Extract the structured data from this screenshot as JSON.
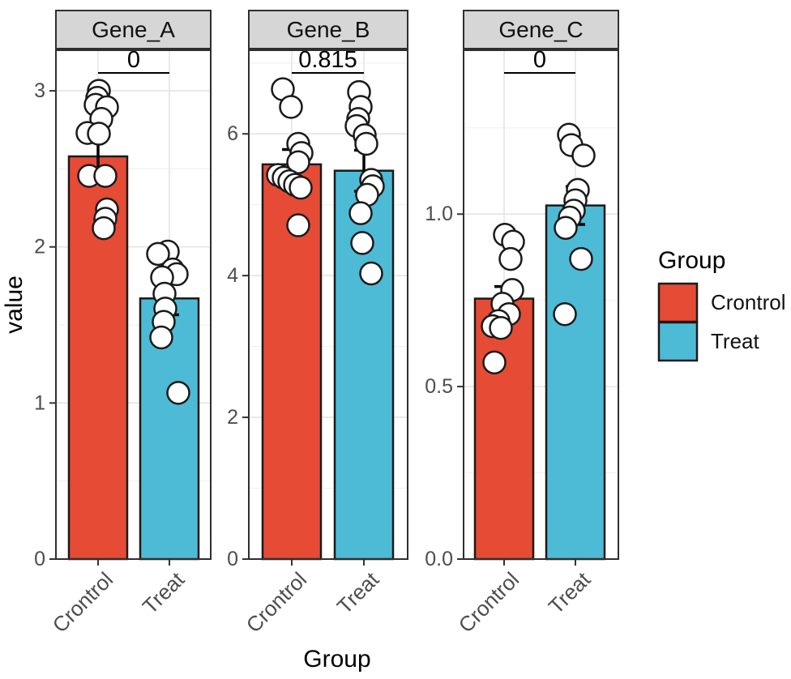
{
  "chart_data": {
    "type": "bar",
    "title": "",
    "xlabel": "Group",
    "ylabel": "value",
    "categories": [
      "Crontrol",
      "Treat"
    ],
    "legend": {
      "title": "Group",
      "position": "right",
      "items": [
        {
          "label": "Crontrol",
          "color": "#E64B35"
        },
        {
          "label": "Treat",
          "color": "#4DBBD5"
        }
      ]
    },
    "style": {
      "point_fill": "#FFFFFF",
      "outline": "#1A1A1A",
      "strip_fill": "#D6D6D6",
      "panel_border": "#2F2F2F",
      "grid_major": "#E4E4E4",
      "grid_minor": "#F1F1F1",
      "tick_text": "#4D4D4D",
      "errorbar_color": "#000000"
    },
    "facets": [
      {
        "title": "Gene_A",
        "p_value_label": "0",
        "ylim": [
          0,
          3.26
        ],
        "ytick_values": [
          0,
          1,
          2,
          3
        ],
        "ytick_labels": [
          "0",
          "1",
          "2",
          "3"
        ],
        "minor_ticks": [
          0.5,
          1.5,
          2.5
        ],
        "bars": [
          {
            "group": "Crontrol",
            "mean": 2.58,
            "err_low": 2.47,
            "err_high": 2.69,
            "points": [
              [
                1,
                3.0
              ],
              [
                -1,
                2.955
              ],
              [
                -3,
                2.91
              ],
              [
                11,
                2.895
              ],
              [
                4,
                2.82
              ],
              [
                -13,
                2.73
              ],
              [
                1,
                2.725
              ],
              [
                -11,
                2.455
              ],
              [
                9,
                2.455
              ],
              [
                11,
                2.24
              ],
              [
                9,
                2.18
              ],
              [
                7,
                2.12
              ]
            ]
          },
          {
            "group": "Treat",
            "mean": 1.67,
            "err_low": 1.565,
            "err_high": 1.775,
            "points": [
              [
                -2,
                1.97
              ],
              [
                -14,
                1.955
              ],
              [
                4,
                1.855
              ],
              [
                9,
                1.825
              ],
              [
                -9,
                1.805
              ],
              [
                -6,
                1.7
              ],
              [
                -5,
                1.605
              ],
              [
                -7,
                1.52
              ],
              [
                -10,
                1.42
              ],
              [
                11,
                1.065
              ]
            ]
          }
        ]
      },
      {
        "title": "Gene_B",
        "p_value_label": "0.815",
        "ylim": [
          0,
          7.18
        ],
        "ytick_values": [
          0,
          2,
          4,
          6
        ],
        "ytick_labels": [
          "0",
          "2",
          "4",
          "6"
        ],
        "minor_ticks": [
          1,
          3,
          5,
          7
        ],
        "bars": [
          {
            "group": "Crontrol",
            "mean": 5.57,
            "err_low": 5.36,
            "err_high": 5.78,
            "points": [
              [
                -11,
                6.63
              ],
              [
                -1,
                6.38
              ],
              [
                8,
                5.86
              ],
              [
                12,
                5.73
              ],
              [
                8,
                5.6
              ],
              [
                -17,
                5.42
              ],
              [
                -10,
                5.38
              ],
              [
                -3,
                5.33
              ],
              [
                4,
                5.28
              ],
              [
                11,
                5.24
              ],
              [
                8,
                4.71
              ]
            ]
          },
          {
            "group": "Treat",
            "mean": 5.48,
            "err_low": 5.19,
            "err_high": 5.77,
            "points": [
              [
                -6,
                6.59
              ],
              [
                -4,
                6.38
              ],
              [
                -7,
                6.21
              ],
              [
                -9,
                6.11
              ],
              [
                1,
                5.98
              ],
              [
                3,
                5.86
              ],
              [
                9,
                5.35
              ],
              [
                11,
                5.26
              ],
              [
                4,
                5.14
              ],
              [
                -4,
                4.88
              ],
              [
                -2,
                4.46
              ],
              [
                9,
                4.03
              ]
            ]
          }
        ]
      },
      {
        "title": "Gene_C",
        "p_value_label": "0",
        "ylim": [
          0,
          1.475
        ],
        "ytick_values": [
          0,
          0.5,
          1.0
        ],
        "ytick_labels": [
          "0.0",
          "0.5",
          "1.0"
        ],
        "minor_ticks": [
          0.25,
          0.75,
          1.25
        ],
        "bars": [
          {
            "group": "Crontrol",
            "mean": 0.755,
            "err_low": 0.72,
            "err_high": 0.79,
            "points": [
              [
                1,
                0.94
              ],
              [
                11,
                0.92
              ],
              [
                8,
                0.87
              ],
              [
                10,
                0.78
              ],
              [
                -2,
                0.74
              ],
              [
                6,
                0.71
              ],
              [
                -7,
                0.69
              ],
              [
                -14,
                0.675
              ],
              [
                -4,
                0.67
              ],
              [
                -12,
                0.57
              ]
            ]
          },
          {
            "group": "Treat",
            "mean": 1.025,
            "err_low": 0.97,
            "err_high": 1.08,
            "points": [
              [
                -8,
                1.23
              ],
              [
                -5,
                1.2
              ],
              [
                10,
                1.17
              ],
              [
                3,
                1.07
              ],
              [
                0,
                1.04
              ],
              [
                -2,
                1.01
              ],
              [
                -7,
                0.99
              ],
              [
                -12,
                0.96
              ],
              [
                7,
                0.87
              ],
              [
                -13,
                0.71
              ]
            ]
          }
        ]
      }
    ]
  }
}
